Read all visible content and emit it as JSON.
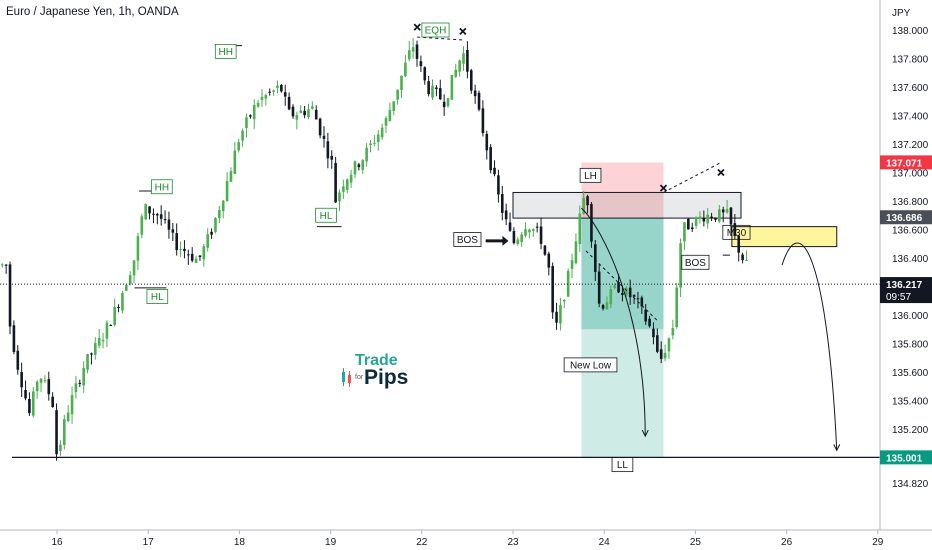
{
  "header": {
    "title": "Euro / Japanese Yen, 1h, OANDA"
  },
  "currency_label": "JPY",
  "watermark": {
    "word1": "Trade",
    "word2": "for",
    "word3": "Pips"
  },
  "chart_data": {
    "type": "candlestick",
    "title": "Euro / Japanese Yen, 1h, OANDA",
    "x_ticks": [
      "16",
      "17",
      "18",
      "19",
      "22",
      "23",
      "24",
      "25",
      "26",
      "29"
    ],
    "y_ticks": [
      "134.820",
      "135.000",
      "135.200",
      "135.400",
      "135.600",
      "135.800",
      "136.000",
      "136.200",
      "136.400",
      "136.600",
      "136.800",
      "137.000",
      "137.200",
      "137.400",
      "137.600",
      "137.800",
      "138.000"
    ],
    "ylim": [
      134.7,
      138.3
    ],
    "price_tags": [
      {
        "id": "red",
        "value": 137.071,
        "text": "137.071",
        "color": "#f23645"
      },
      {
        "id": "gray",
        "value": 136.686,
        "text": "136.686",
        "color": "#4a4e57"
      },
      {
        "id": "current",
        "value": 136.217,
        "text": "136.217",
        "countdown": "09:57",
        "color": "#131722"
      },
      {
        "id": "green",
        "value": 135.001,
        "text": "135.001",
        "color": "#089981"
      }
    ],
    "levels": [
      {
        "name": "current-price",
        "value": 136.217,
        "style": "dotted"
      },
      {
        "name": "target-line",
        "value": 135.001,
        "style": "solid"
      }
    ],
    "annotations": [
      {
        "text": "HH",
        "x": 1.15,
        "y": 136.9
      },
      {
        "text": "HL",
        "x": 1.1,
        "y": 136.13
      },
      {
        "text": "HH",
        "x": 1.85,
        "y": 137.85
      },
      {
        "text": "HL",
        "x": 2.95,
        "y": 136.7
      },
      {
        "text": "EQH",
        "x": 4.15,
        "y": 138.0
      },
      {
        "text": "BOS",
        "x": 4.5,
        "y": 136.53
      },
      {
        "text": "LH",
        "x": 5.85,
        "y": 136.98
      },
      {
        "text": "New Low",
        "x": 5.85,
        "y": 135.65
      },
      {
        "text": "LL",
        "x": 6.2,
        "y": 134.95
      },
      {
        "text": "BOS",
        "x": 7.0,
        "y": 136.37
      },
      {
        "text": "M30",
        "x": 7.45,
        "y": 136.58
      }
    ],
    "zones": [
      {
        "name": "supply-box",
        "x0": 5.0,
        "x1": 7.5,
        "y0": 136.68,
        "y1": 136.86
      },
      {
        "name": "stop-zone",
        "x0": 5.75,
        "x1": 6.65,
        "y0": 136.68,
        "y1": 137.07
      },
      {
        "name": "profit-zone-dark",
        "x0": 5.75,
        "x1": 6.65,
        "y0": 135.9,
        "y1": 136.68
      },
      {
        "name": "profit-zone-light",
        "x0": 5.75,
        "x1": 6.65,
        "y0": 135.0,
        "y1": 135.9
      },
      {
        "name": "m30-zone",
        "x0": 7.4,
        "x1": 8.55,
        "y0": 136.48,
        "y1": 136.62
      }
    ]
  }
}
